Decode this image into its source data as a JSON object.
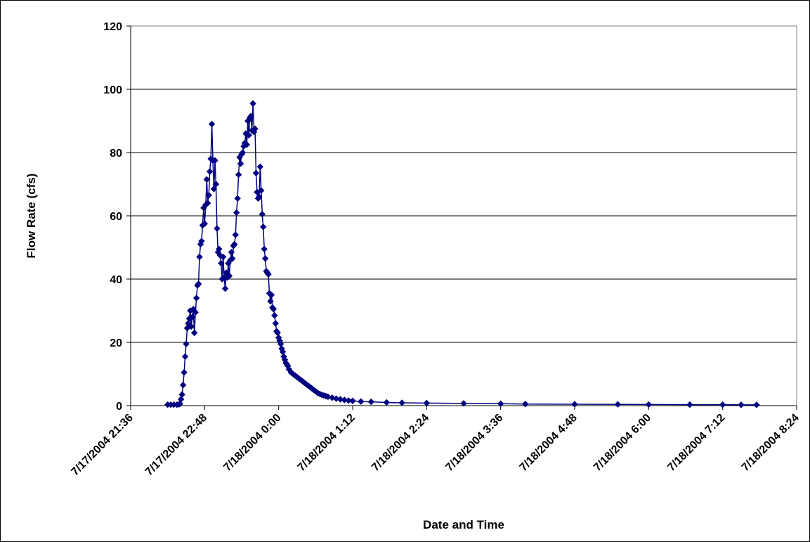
{
  "chart_data": {
    "type": "line",
    "title": "",
    "xlabel": "Date and Time",
    "ylabel": "Flow Rate (cfs)",
    "x_type": "datetime",
    "x_ticks": [
      "7/17/2004 21:36",
      "7/17/2004 22:48",
      "7/18/2004 0:00",
      "7/18/2004 1:12",
      "7/18/2004 2:24",
      "7/18/2004 3:36",
      "7/18/2004 4:48",
      "7/18/2004 6:00",
      "7/18/2004 7:12",
      "7/18/2004 8:24"
    ],
    "xlim": [
      "7/17/2004 21:36",
      "7/18/2004 8:24"
    ],
    "ylim": [
      0,
      120
    ],
    "y_ticks": [
      "0",
      "20",
      "40",
      "60",
      "80",
      "100",
      "120"
    ],
    "grid": "horizontal",
    "legend": "none",
    "series": [
      {
        "color": "#000080",
        "marker": "diamond",
        "x": [
          "7/17/2004 22:12",
          "7/17/2004 22:15",
          "7/17/2004 22:18",
          "7/17/2004 22:21",
          "7/17/2004 22:23",
          "7/17/2004 22:24",
          "7/17/2004 22:25",
          "7/17/2004 22:26",
          "7/17/2004 22:27",
          "7/17/2004 22:28",
          "7/17/2004 22:29",
          "7/17/2004 22:30",
          "7/17/2004 22:31",
          "7/17/2004 22:32",
          "7/17/2004 22:33",
          "7/17/2004 22:34",
          "7/17/2004 22:35",
          "7/17/2004 22:36",
          "7/17/2004 22:37",
          "7/17/2004 22:38",
          "7/17/2004 22:39",
          "7/17/2004 22:40",
          "7/17/2004 22:41",
          "7/17/2004 22:42",
          "7/17/2004 22:43",
          "7/17/2004 22:44",
          "7/17/2004 22:45",
          "7/17/2004 22:46",
          "7/17/2004 22:47",
          "7/17/2004 22:48",
          "7/17/2004 22:49",
          "7/17/2004 22:50",
          "7/17/2004 22:51",
          "7/17/2004 22:52",
          "7/17/2004 22:53",
          "7/17/2004 22:54",
          "7/17/2004 22:55",
          "7/17/2004 22:56",
          "7/17/2004 22:57",
          "7/17/2004 22:58",
          "7/17/2004 22:59",
          "7/17/2004 23:00",
          "7/17/2004 23:01",
          "7/17/2004 23:02",
          "7/17/2004 23:03",
          "7/17/2004 23:04",
          "7/17/2004 23:05",
          "7/17/2004 23:06",
          "7/17/2004 23:07",
          "7/17/2004 23:08",
          "7/17/2004 23:09",
          "7/17/2004 23:10",
          "7/17/2004 23:11",
          "7/17/2004 23:12",
          "7/17/2004 23:13",
          "7/17/2004 23:14",
          "7/17/2004 23:15",
          "7/17/2004 23:16",
          "7/17/2004 23:17",
          "7/17/2004 23:18",
          "7/17/2004 23:19",
          "7/17/2004 23:20",
          "7/17/2004 23:21",
          "7/17/2004 23:22",
          "7/17/2004 23:23",
          "7/17/2004 23:24",
          "7/17/2004 23:25",
          "7/17/2004 23:26",
          "7/17/2004 23:27",
          "7/17/2004 23:28",
          "7/17/2004 23:29",
          "7/17/2004 23:30",
          "7/17/2004 23:31",
          "7/17/2004 23:32",
          "7/17/2004 23:33",
          "7/17/2004 23:34",
          "7/17/2004 23:35",
          "7/17/2004 23:36",
          "7/17/2004 23:37",
          "7/17/2004 23:38",
          "7/17/2004 23:39",
          "7/17/2004 23:40",
          "7/17/2004 23:41",
          "7/17/2004 23:42",
          "7/17/2004 23:43",
          "7/17/2004 23:44",
          "7/17/2004 23:45",
          "7/17/2004 23:46",
          "7/17/2004 23:47",
          "7/17/2004 23:48",
          "7/17/2004 23:49",
          "7/17/2004 23:50",
          "7/17/2004 23:51",
          "7/17/2004 23:52",
          "7/17/2004 23:53",
          "7/17/2004 23:54",
          "7/17/2004 23:55",
          "7/17/2004 23:56",
          "7/17/2004 23:57",
          "7/17/2004 23:58",
          "7/17/2004 23:59",
          "7/18/2004 0:00",
          "7/18/2004 0:01",
          "7/18/2004 0:02",
          "7/18/2004 0:03",
          "7/18/2004 0:04",
          "7/18/2004 0:05",
          "7/18/2004 0:06",
          "7/18/2004 0:07",
          "7/18/2004 0:08",
          "7/18/2004 0:09",
          "7/18/2004 0:10",
          "7/18/2004 0:12",
          "7/18/2004 0:14",
          "7/18/2004 0:16",
          "7/18/2004 0:18",
          "7/18/2004 0:20",
          "7/18/2004 0:22",
          "7/18/2004 0:24",
          "7/18/2004 0:26",
          "7/18/2004 0:28",
          "7/18/2004 0:30",
          "7/18/2004 0:32",
          "7/18/2004 0:34",
          "7/18/2004 0:36",
          "7/18/2004 0:38",
          "7/18/2004 0:40",
          "7/18/2004 0:42",
          "7/18/2004 0:44",
          "7/18/2004 0:46",
          "7/18/2004 0:48",
          "7/18/2004 0:52",
          "7/18/2004 0:56",
          "7/18/2004 1:00",
          "7/18/2004 1:04",
          "7/18/2004 1:08",
          "7/18/2004 1:12",
          "7/18/2004 1:20",
          "7/18/2004 1:30",
          "7/18/2004 1:45",
          "7/18/2004 2:00",
          "7/18/2004 2:24",
          "7/18/2004 3:00",
          "7/18/2004 3:36",
          "7/18/2004 4:00",
          "7/18/2004 4:48",
          "7/18/2004 5:30",
          "7/18/2004 6:00",
          "7/18/2004 6:40",
          "7/18/2004 7:12",
          "7/18/2004 7:30",
          "7/18/2004 7:45"
        ],
        "y": [
          0.3,
          0.3,
          0.3,
          0.3,
          0.4,
          0.6,
          2.0,
          3.5,
          6.5,
          10.5,
          15.5,
          19.5,
          24.5,
          26.0,
          27.5,
          30.0,
          25.0,
          28.0,
          30.5,
          23.0,
          29.5,
          34.0,
          38.0,
          38.5,
          47.0,
          51.0,
          52.0,
          57.0,
          62.5,
          57.5,
          63.5,
          71.5,
          64.0,
          66.5,
          74.0,
          78.0,
          89.0,
          77.5,
          68.5,
          77.5,
          70.0,
          56.0,
          48.5,
          49.5,
          47.5,
          45.0,
          40.0,
          47.0,
          40.5,
          37.0,
          42.0,
          40.5,
          45.0,
          41.0,
          46.0,
          48.5,
          46.5,
          50.5,
          51.0,
          54.0,
          61.0,
          65.5,
          73.0,
          78.5,
          76.5,
          79.5,
          80.0,
          82.0,
          83.0,
          86.0,
          82.5,
          90.0,
          85.5,
          91.0,
          91.5,
          87.0,
          95.5,
          86.5,
          87.5,
          73.5,
          67.5,
          65.5,
          66.0,
          75.5,
          68.0,
          60.5,
          56.5,
          49.5,
          46.5,
          42.5,
          42.0,
          41.5,
          35.5,
          33.0,
          35.0,
          31.0,
          30.5,
          28.5,
          26.0,
          23.5,
          23.0,
          21.5,
          20.5,
          19.5,
          18.0,
          17.0,
          15.5,
          14.5,
          13.5,
          13.0,
          12.5,
          11.5,
          10.5,
          10.0,
          9.5,
          9.0,
          8.5,
          8.0,
          7.5,
          7.0,
          6.5,
          6.0,
          5.5,
          5.0,
          4.5,
          4.0,
          3.7,
          3.4,
          3.2,
          3.0,
          2.8,
          2.5,
          2.2,
          2.0,
          1.8,
          1.6,
          1.5,
          1.3,
          1.2,
          1.0,
          0.9,
          0.8,
          0.7,
          0.6,
          0.5,
          0.45,
          0.4,
          0.35,
          0.3,
          0.3,
          0.25,
          0.25
        ]
      }
    ]
  }
}
